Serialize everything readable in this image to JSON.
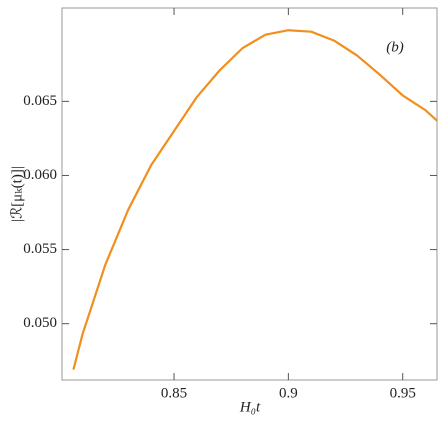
{
  "chart_data": {
    "type": "line",
    "xlabel": "H₀t",
    "ylabel": "|ℛ[μₖ(t)]|",
    "annotation": "(b)",
    "x": [
      0.806,
      0.81,
      0.82,
      0.83,
      0.84,
      0.85,
      0.86,
      0.87,
      0.88,
      0.89,
      0.9,
      0.91,
      0.92,
      0.93,
      0.94,
      0.95,
      0.96,
      0.965
    ],
    "series": [
      {
        "name": "curve",
        "color": "#f28e1c",
        "values": [
          0.0469,
          0.0493,
          0.054,
          0.0577,
          0.0607,
          0.063,
          0.0653,
          0.0671,
          0.0686,
          0.0695,
          0.0698,
          0.0697,
          0.0691,
          0.0681,
          0.0668,
          0.0654,
          0.0644,
          0.0637
        ]
      }
    ],
    "xlim": [
      0.801,
      0.965
    ],
    "ylim": [
      0.0462,
      0.0713
    ],
    "xticks": [
      0.85,
      0.9,
      0.95
    ],
    "yticks": [
      {
        "value": 0.05,
        "label": "0.050"
      },
      0.055,
      {
        "value": 0.06,
        "label": "0.060"
      },
      0.065
    ]
  }
}
